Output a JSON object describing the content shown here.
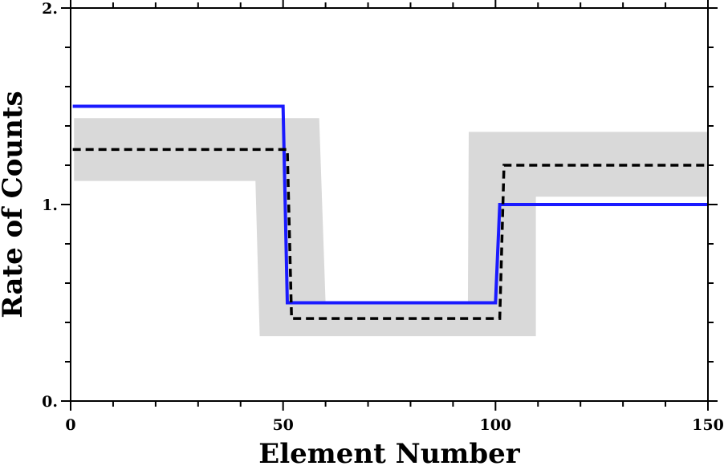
{
  "chart_data": {
    "type": "line",
    "xlabel": "Element Number",
    "ylabel": "Rate of Counts",
    "xlim": [
      0,
      150
    ],
    "ylim": [
      0,
      2
    ],
    "x_ticks": [
      {
        "value": 0,
        "label": "0"
      },
      {
        "value": 50,
        "label": "50"
      },
      {
        "value": 100,
        "label": "100"
      },
      {
        "value": 150,
        "label": "150"
      }
    ],
    "y_ticks": [
      {
        "value": 0,
        "label": "0."
      },
      {
        "value": 1,
        "label": "1."
      },
      {
        "value": 2,
        "label": "2."
      }
    ],
    "x_minor_step": 10,
    "y_minor_step": 0.2,
    "grid": false,
    "legend": false,
    "band": {
      "color": "#d9d9d9",
      "upper": [
        {
          "x": 0.8,
          "y": 1.44
        },
        {
          "x": 58.5,
          "y": 1.44
        },
        {
          "x": 60,
          "y": 0.5
        },
        {
          "x": 93.5,
          "y": 0.5
        },
        {
          "x": 93.7,
          "y": 1.37
        },
        {
          "x": 150,
          "y": 1.37
        }
      ],
      "lower": [
        {
          "x": 0.8,
          "y": 1.12
        },
        {
          "x": 43.5,
          "y": 1.12
        },
        {
          "x": 44.5,
          "y": 0.33
        },
        {
          "x": 109.5,
          "y": 0.33
        },
        {
          "x": 109.5,
          "y": 1.04
        },
        {
          "x": 150,
          "y": 1.04
        }
      ]
    },
    "series": [
      {
        "style": "solid",
        "color": "#1a1aff",
        "points": [
          {
            "x": 0.5,
            "y": 1.5
          },
          {
            "x": 50,
            "y": 1.5
          },
          {
            "x": 51,
            "y": 0.5
          },
          {
            "x": 100,
            "y": 0.5
          },
          {
            "x": 101,
            "y": 1.0
          },
          {
            "x": 150,
            "y": 1.0
          }
        ]
      },
      {
        "style": "dashed",
        "color": "#000000",
        "points": [
          {
            "x": 0.5,
            "y": 1.28
          },
          {
            "x": 51,
            "y": 1.28
          },
          {
            "x": 52,
            "y": 0.42
          },
          {
            "x": 101,
            "y": 0.42
          },
          {
            "x": 102,
            "y": 1.2
          },
          {
            "x": 150,
            "y": 1.2
          }
        ]
      }
    ]
  }
}
